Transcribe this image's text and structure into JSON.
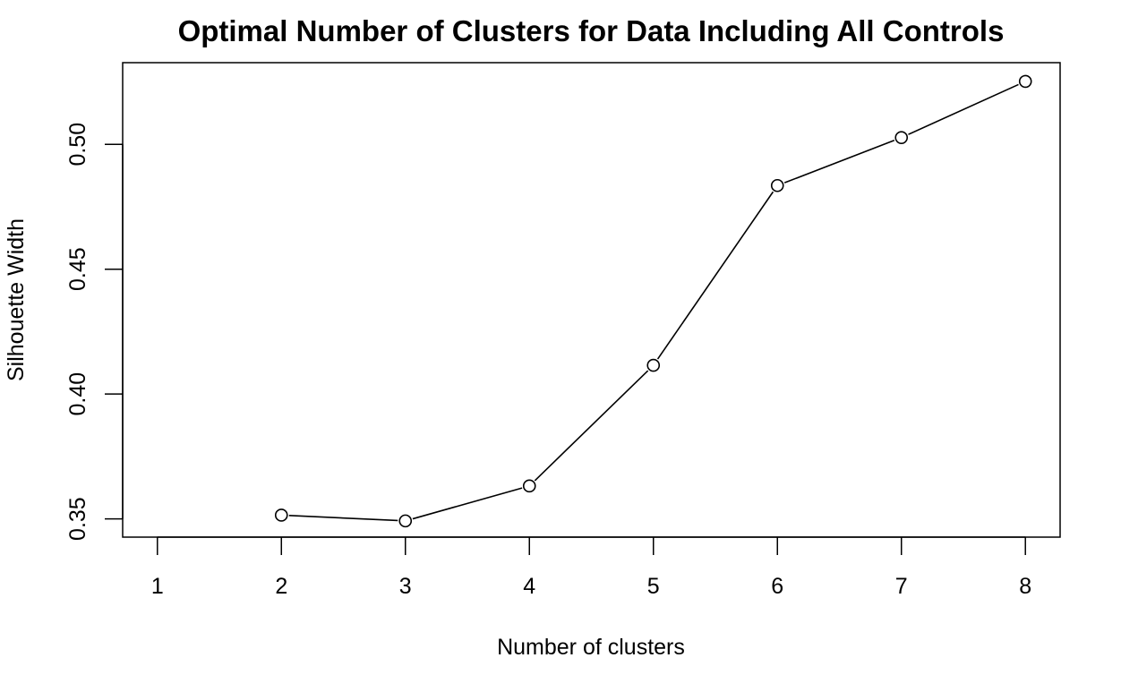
{
  "chart_data": {
    "type": "line",
    "title": "Optimal Number of Clusters for Data Including All Controls",
    "xlabel": "Number of clusters",
    "ylabel": "Silhouette Width",
    "x_ticks": [
      "1",
      "2",
      "3",
      "4",
      "5",
      "6",
      "7",
      "8"
    ],
    "y_ticks": [
      "0.35",
      "0.40",
      "0.45",
      "0.50"
    ],
    "xlim": [
      0.72,
      8.28
    ],
    "ylim": [
      0.3427,
      0.5327
    ],
    "grid": false,
    "legend": "none",
    "markers": "open-circle",
    "series": [
      {
        "x": [
          2,
          3,
          4,
          5,
          6,
          7,
          8
        ],
        "values": [
          0.3515,
          0.3492,
          0.3632,
          0.4115,
          0.4835,
          0.5027,
          0.5252
        ]
      }
    ],
    "colors": {
      "line": "#000000",
      "frame": "#000000"
    }
  }
}
